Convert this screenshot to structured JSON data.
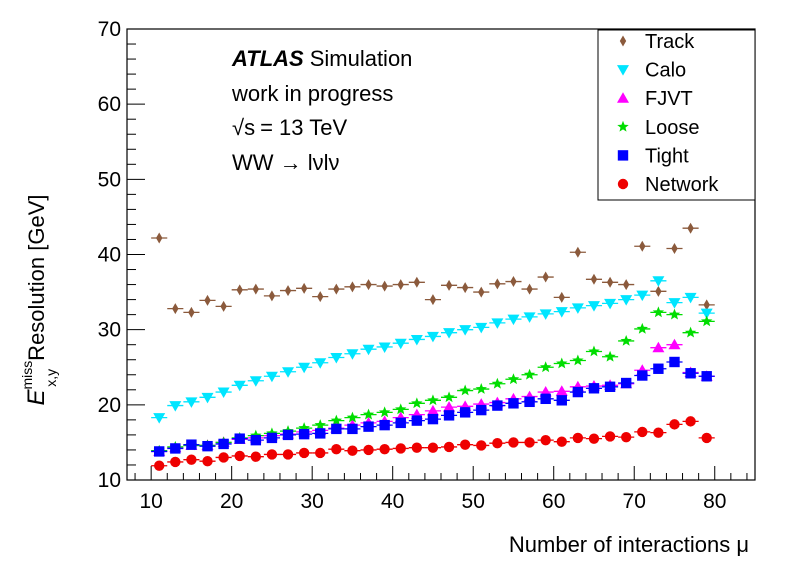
{
  "chart_data": {
    "type": "scatter",
    "xlabel": "Number of interactions μ",
    "ylabel_main": "E",
    "ylabel_sup": "miss",
    "ylabel_sub": "x,y",
    "ylabel_rest": "Resolution [GeV]",
    "xlim": [
      7,
      85
    ],
    "ylim": [
      10,
      70
    ],
    "xticks": [
      10,
      20,
      30,
      40,
      50,
      60,
      70,
      80
    ],
    "yticks": [
      10,
      20,
      30,
      40,
      50,
      60,
      70
    ],
    "grid": false,
    "legend_position": "top-right",
    "annotations": {
      "experiment": "ATLAS",
      "experiment_suffix": "Simulation",
      "status": "work in progress",
      "energy_sqrt": "√s",
      "energy_value": "= 13 TeV",
      "process": "WW → lνlν"
    },
    "x": [
      11,
      13,
      15,
      17,
      19,
      21,
      23,
      25,
      27,
      29,
      31,
      33,
      35,
      37,
      39,
      41,
      43,
      45,
      47,
      49,
      51,
      53,
      55,
      57,
      59,
      61,
      63,
      65,
      67,
      69,
      71,
      73,
      75,
      77,
      79
    ],
    "series": [
      {
        "name": "Track",
        "color": "#8b5a3c",
        "marker": "diamond",
        "values": [
          42.2,
          32.8,
          32.3,
          33.9,
          33.1,
          35.3,
          35.4,
          34.5,
          35.2,
          35.5,
          34.4,
          35.4,
          35.7,
          36.0,
          35.8,
          36.0,
          36.3,
          34.0,
          35.9,
          35.6,
          35.0,
          36.1,
          36.4,
          35.4,
          37.0,
          34.3,
          40.3,
          36.7,
          36.3,
          36.0,
          41.1,
          35.1,
          40.8,
          43.5,
          33.3
        ]
      },
      {
        "name": "Calo",
        "color": "#00e5ff",
        "marker": "triangle-down",
        "values": [
          18.3,
          19.9,
          20.4,
          21.0,
          21.7,
          22.6,
          23.2,
          23.8,
          24.4,
          25.0,
          25.6,
          26.3,
          26.8,
          27.4,
          27.7,
          28.2,
          28.7,
          29.1,
          29.6,
          30.0,
          30.3,
          30.9,
          31.4,
          31.7,
          32.1,
          32.4,
          32.9,
          33.2,
          33.5,
          34.0,
          34.6,
          36.5,
          33.6,
          34.3,
          32.2
        ]
      },
      {
        "name": "FJVT",
        "color": "#ff00ff",
        "marker": "triangle-up",
        "values": [
          13.8,
          14.3,
          14.6,
          14.6,
          15.0,
          15.4,
          15.6,
          15.9,
          16.1,
          16.4,
          16.6,
          16.9,
          17.3,
          17.6,
          17.8,
          18.3,
          18.7,
          19.2,
          19.7,
          19.8,
          20.1,
          20.3,
          20.8,
          21.1,
          21.7,
          21.8,
          22.4,
          22.5,
          22.6,
          22.8,
          24.6,
          27.6,
          28.0,
          24.3,
          23.8
        ]
      },
      {
        "name": "Loose",
        "color": "#00dd00",
        "marker": "star",
        "values": [
          13.9,
          14.4,
          14.6,
          14.6,
          15.0,
          15.6,
          15.9,
          16.2,
          16.5,
          16.9,
          17.3,
          17.9,
          18.3,
          18.7,
          19.0,
          19.4,
          20.2,
          20.6,
          21.0,
          21.9,
          22.1,
          22.8,
          23.4,
          24.0,
          25.0,
          25.5,
          25.9,
          27.1,
          26.4,
          28.5,
          30.1,
          32.3,
          32.0,
          29.6,
          31.1
        ]
      },
      {
        "name": "Tight",
        "color": "#0000ff",
        "marker": "square",
        "values": [
          13.8,
          14.2,
          14.7,
          14.5,
          14.8,
          15.5,
          15.3,
          15.6,
          16.0,
          16.1,
          16.2,
          16.8,
          16.8,
          17.1,
          17.3,
          17.6,
          17.9,
          18.1,
          18.6,
          19.0,
          19.3,
          19.9,
          20.2,
          20.4,
          20.8,
          20.6,
          21.7,
          22.2,
          22.4,
          22.9,
          23.9,
          24.8,
          25.7,
          24.2,
          23.8
        ]
      },
      {
        "name": "Network",
        "color": "#ee0000",
        "marker": "circle",
        "values": [
          11.9,
          12.4,
          12.7,
          12.5,
          13.0,
          13.2,
          13.1,
          13.4,
          13.4,
          13.6,
          13.6,
          14.1,
          13.9,
          14.0,
          14.1,
          14.2,
          14.3,
          14.3,
          14.4,
          14.7,
          14.6,
          14.9,
          15.0,
          15.0,
          15.3,
          15.1,
          15.6,
          15.5,
          15.8,
          15.7,
          16.4,
          16.3,
          17.4,
          17.8,
          15.6
        ]
      }
    ]
  }
}
